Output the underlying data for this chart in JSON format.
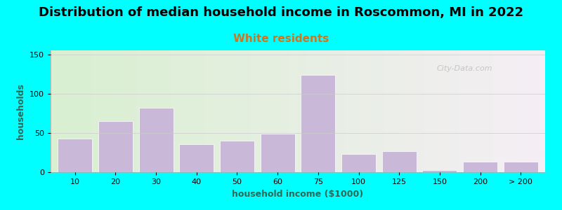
{
  "title": "Distribution of median household income in Roscommon, MI in 2022",
  "subtitle": "White residents",
  "xlabel": "household income ($1000)",
  "ylabel": "households",
  "bar_color": "#c9b8d8",
  "bar_edgecolor": "#ffffff",
  "background_color": "#00ffff",
  "categories": [
    "10",
    "20",
    "30",
    "40",
    "50",
    "60",
    "75",
    "100",
    "125",
    "150",
    "200",
    "> 200"
  ],
  "values": [
    43,
    65,
    82,
    36,
    40,
    49,
    124,
    23,
    27,
    3,
    13,
    13
  ],
  "positions": [
    1,
    2,
    3,
    4,
    5,
    6,
    7,
    8,
    9,
    10,
    11,
    12
  ],
  "yticks": [
    0,
    50,
    100,
    150
  ],
  "ylim": [
    0,
    155
  ],
  "xlim": [
    0.4,
    12.6
  ],
  "title_fontsize": 13,
  "subtitle_fontsize": 11,
  "subtitle_color": "#cc7722",
  "axis_label_fontsize": 9,
  "axis_label_color": "#336655",
  "tick_fontsize": 8,
  "watermark": "City-Data.com",
  "plot_bg_color_left": "#d8f0d0",
  "plot_bg_color_right": "#f5eef5"
}
